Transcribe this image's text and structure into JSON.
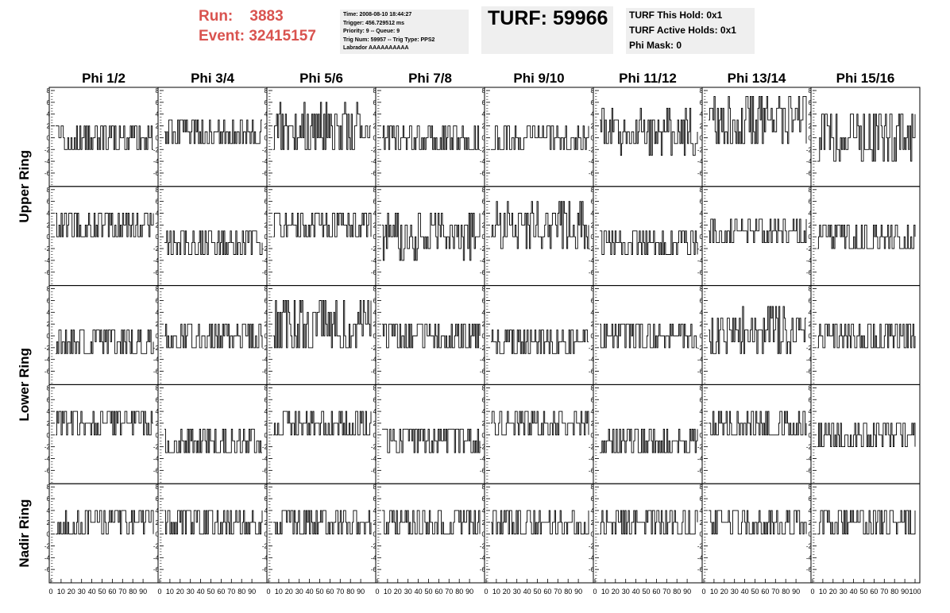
{
  "header": {
    "run_label": "Run:",
    "run_value": "3883",
    "event_label": "Event:",
    "event_value": "32415157",
    "trigger_info": [
      "Time: 2008-08-10 18:44:27",
      "Trigger: 456.729512 ms",
      "Priority: 9 -- Queue: 9",
      "Trig Num: 59957 -- Trig Type: PPS2",
      "Labrador AAAAAAAAAA"
    ],
    "turf_label": "TURF:",
    "turf_value": "59966",
    "turf_status": [
      "TURF This Hold: 0x1",
      "TURF Active Holds: 0x1",
      "Phi Mask: 0"
    ]
  },
  "colors": {
    "header_red": "#d9534f",
    "info_bg": "#efefef",
    "trace": "#000000"
  },
  "chart_data": {
    "type": "line",
    "columns": [
      "Phi 1/2",
      "Phi 3/4",
      "Phi 5/6",
      "Phi 7/8",
      "Phi 9/10",
      "Phi 11/12",
      "Phi 13/14",
      "Phi 15/16"
    ],
    "row_labels": [
      {
        "text": "Upper Ring",
        "rows": [
          0,
          1
        ]
      },
      {
        "text": "Lower Ring",
        "rows": [
          2,
          3
        ]
      },
      {
        "text": "Nadir Ring",
        "rows": [
          4
        ]
      }
    ],
    "ylim": [
      -8,
      8
    ],
    "xlim": [
      0,
      100
    ],
    "y_ticks": [
      "-6",
      "-4",
      "-2",
      "0",
      "2",
      "4",
      "6",
      "8"
    ],
    "x_ticks": [
      "0",
      "10",
      "20",
      "30",
      "40",
      "50",
      "60",
      "70",
      "80",
      "90",
      "100"
    ],
    "samples_per_trace": 90,
    "trace_levels": [
      [
        0,
        1,
        2,
        0,
        0,
        1,
        3,
        0
      ],
      [
        2,
        -1,
        2,
        0,
        2,
        -1,
        1,
        0
      ],
      [
        -1,
        0,
        2,
        0,
        -1,
        0,
        1,
        0
      ],
      [
        2,
        -1,
        2,
        -1,
        2,
        -1,
        2,
        0
      ],
      [
        2,
        2,
        2,
        2,
        2,
        2,
        2,
        2
      ]
    ],
    "trace_spread": [
      [
        3,
        3,
        4,
        3,
        3,
        4,
        5,
        5
      ],
      [
        3,
        3,
        3,
        4,
        4,
        3,
        3,
        3
      ],
      [
        3,
        3,
        5,
        3,
        3,
        3,
        4,
        3
      ],
      [
        3,
        3,
        3,
        3,
        3,
        3,
        3,
        3
      ],
      [
        3,
        3,
        3,
        3,
        3,
        3,
        3,
        3
      ]
    ]
  }
}
